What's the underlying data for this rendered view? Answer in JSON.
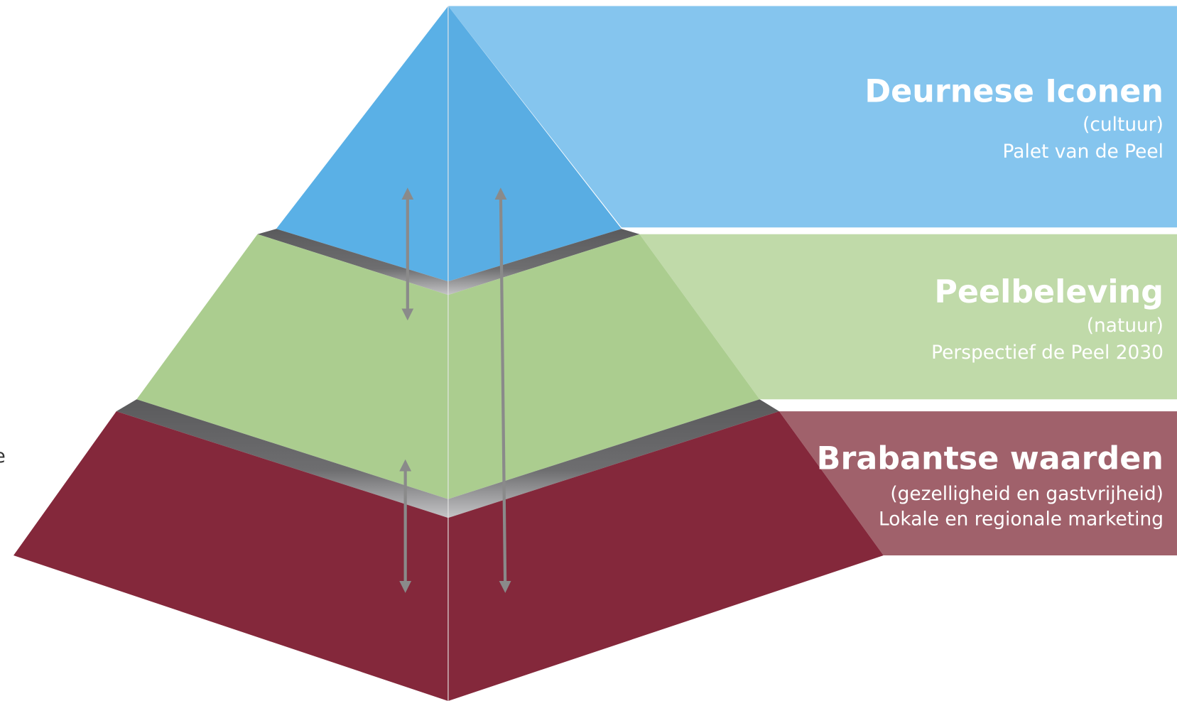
{
  "side_label": "e",
  "levels": [
    {
      "title": "Deurnese Iconen",
      "subtitle": "(cultuur)",
      "description": "Palet van de Peel"
    },
    {
      "title": "Peelbeleving",
      "subtitle": "(natuur)",
      "description": "Perspectief de Peel 2030"
    },
    {
      "title": "Brabantse waarden",
      "subtitle": "(gezelligheid en gastvrijheid)",
      "description": "Lokale en regionale marketing"
    }
  ]
}
